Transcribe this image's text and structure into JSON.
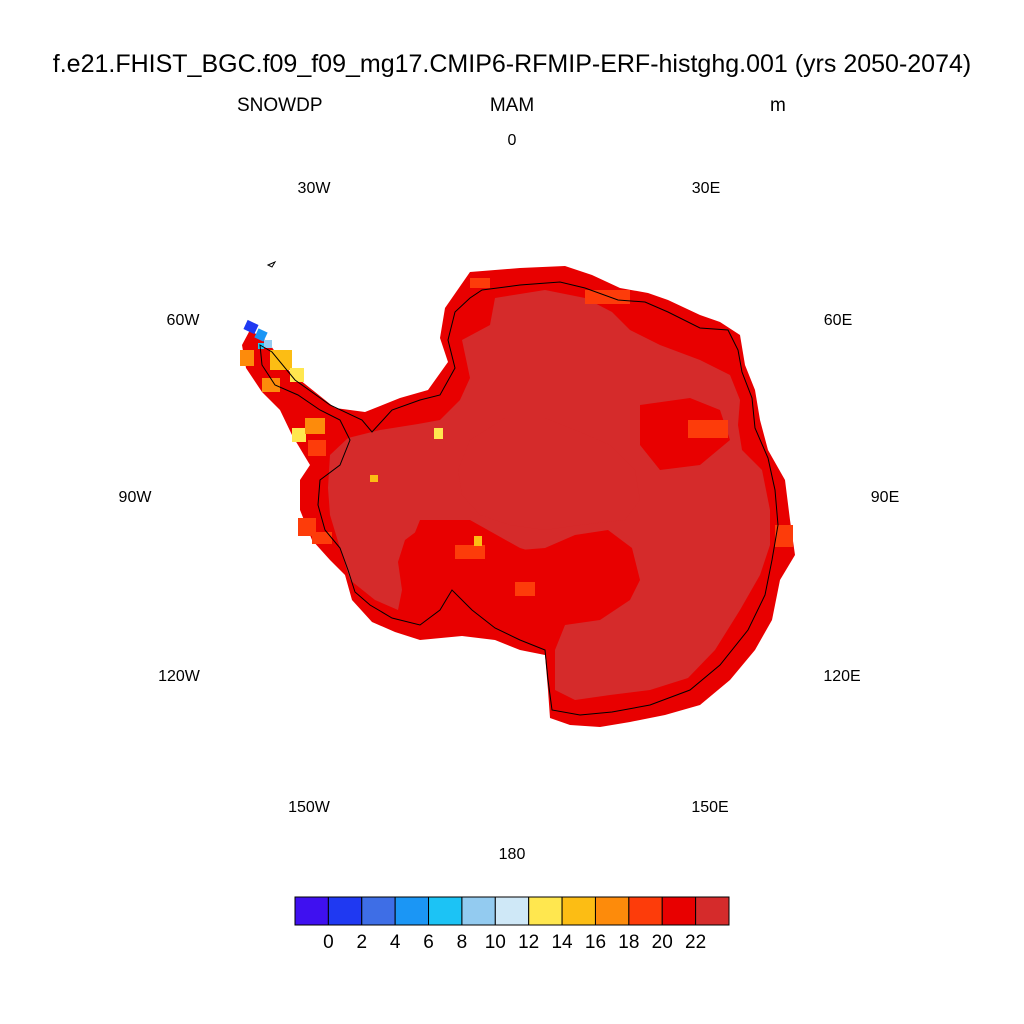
{
  "title": "f.e21.FHIST_BGC.f09_f09_mg17.CMIP6-RFMIP-ERF-histghg.001 (yrs 2050-2074)",
  "variable": "SNOWDP",
  "season": "MAM",
  "units": "m",
  "projection": "south-polar-stereographic",
  "longitude_labels": [
    "0",
    "30E",
    "60E",
    "90E",
    "120E",
    "150E",
    "180",
    "150W",
    "120W",
    "90W",
    "60W",
    "30W"
  ],
  "colorbar": {
    "colors": [
      "#3f10f0",
      "#1f39f2",
      "#3e6ee6",
      "#1b96f5",
      "#1cc3f5",
      "#93cbf0",
      "#cfe8f7",
      "#ffe74f",
      "#fcbd14",
      "#fd8b0b",
      "#fd3c0a",
      "#e80000",
      "#d52b2b"
    ],
    "labels": [
      "0",
      "2",
      "4",
      "6",
      "8",
      "10",
      "12",
      "14",
      "16",
      "18",
      "20",
      "22"
    ]
  },
  "field_summary": {
    "interior_value_class": "> 22",
    "coastal_value_class": "20-22",
    "peninsula_values": "0-20"
  }
}
